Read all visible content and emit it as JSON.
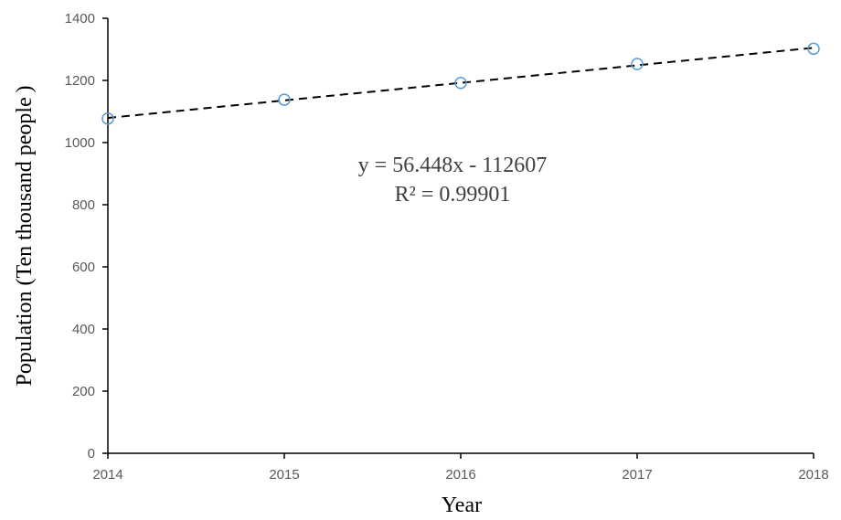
{
  "chart_data": {
    "type": "scatter",
    "xlabel": "Year",
    "ylabel": "Population (Ten thousand people )",
    "xlim": [
      2014,
      2018
    ],
    "ylim": [
      0,
      1400
    ],
    "x_ticks": [
      "2014",
      "2015",
      "2016",
      "2017",
      "2018"
    ],
    "y_ticks": [
      "0",
      "200",
      "400",
      "600",
      "800",
      "1000",
      "1200",
      "1400"
    ],
    "grid": false,
    "series": [
      {
        "x": [
          2014,
          2015,
          2016,
          2017,
          2018
        ],
        "values": [
          1077,
          1138,
          1192,
          1253,
          1302
        ],
        "marker": "open-circle",
        "color": "#5B9BD5"
      }
    ],
    "trendline": {
      "type": "linear",
      "slope": 56.448,
      "intercept": -112607,
      "style": "dashed",
      "color": "#000000",
      "equation": "y = 56.448x - 112607",
      "r_squared": "R² = 0.99901"
    }
  }
}
